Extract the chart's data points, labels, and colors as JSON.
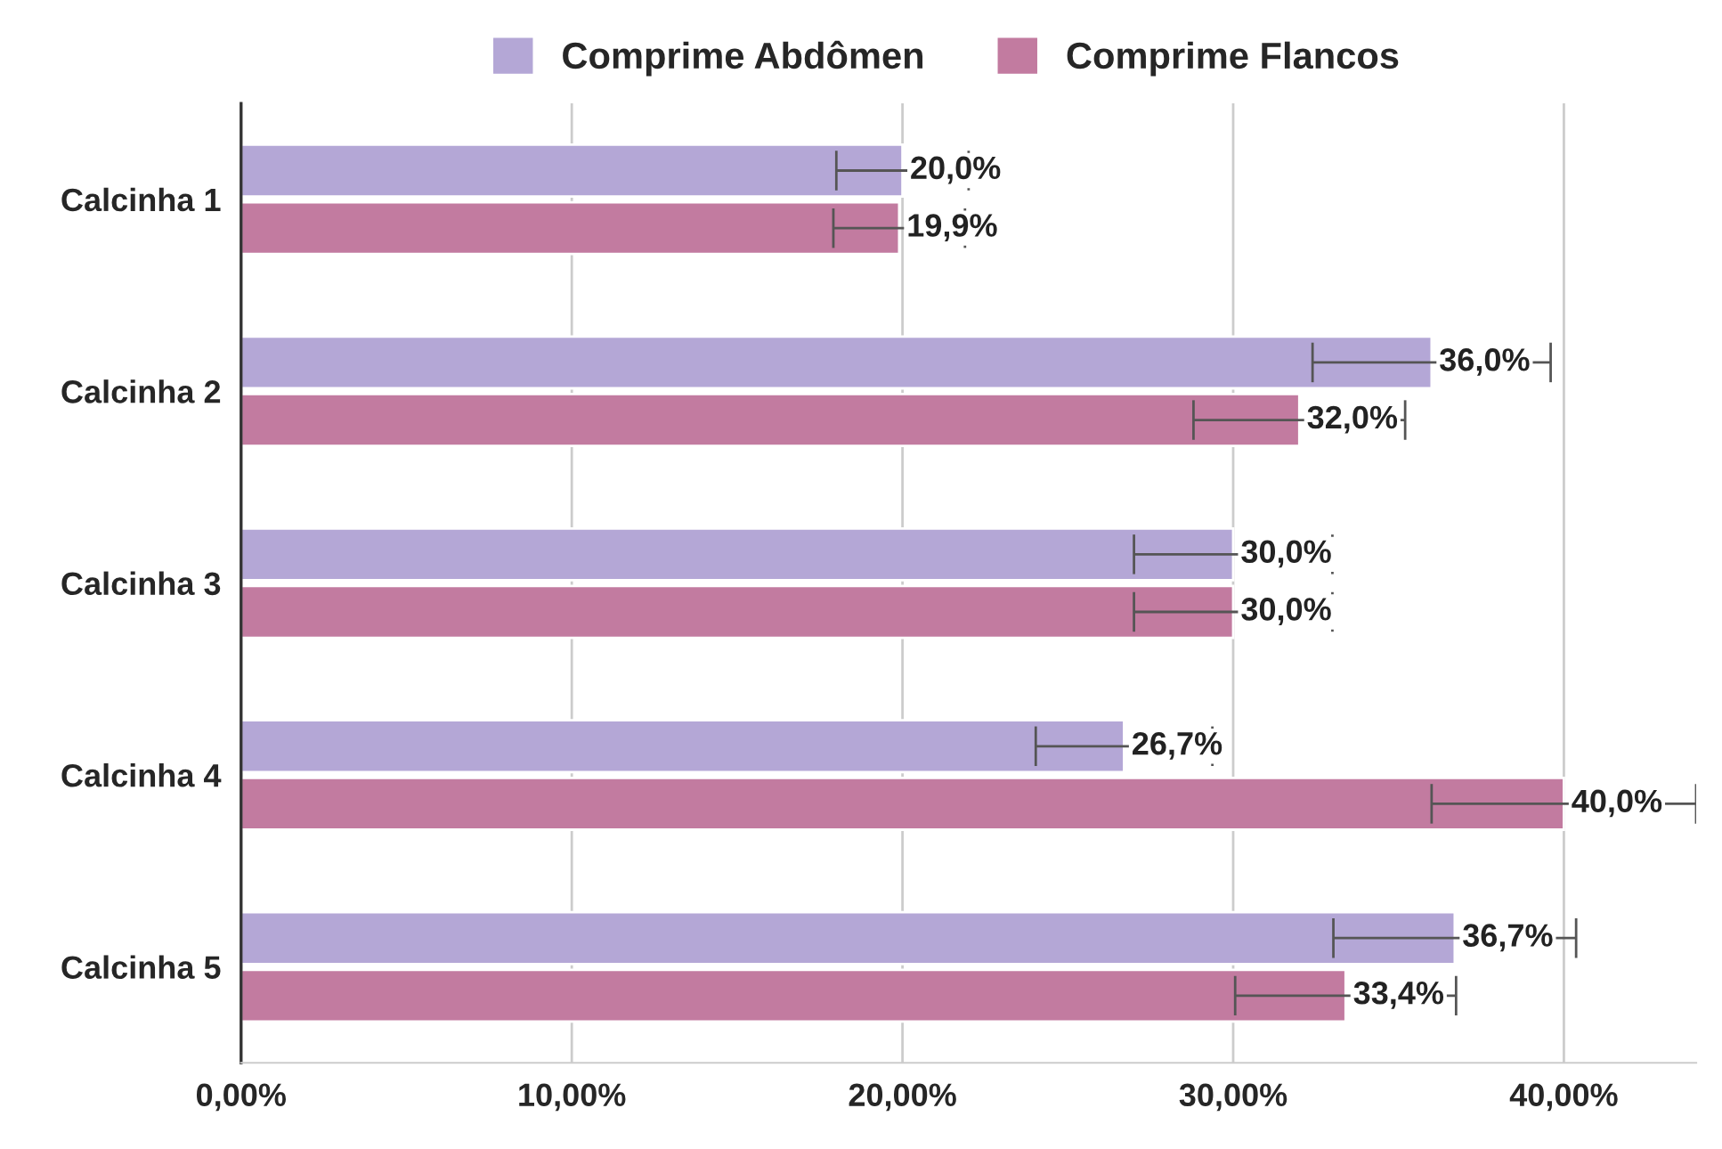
{
  "chart_data": {
    "type": "bar",
    "orientation": "horizontal",
    "categories": [
      "Calcinha 1",
      "Calcinha 2",
      "Calcinha 3",
      "Calcinha 4",
      "Calcinha 5"
    ],
    "series": [
      {
        "name": "Comprime Abdômen",
        "color": "#b4a7d6",
        "values": [
          20.0,
          36.0,
          30.0,
          26.7,
          36.7
        ],
        "errors": [
          2.0,
          3.6,
          3.0,
          2.67,
          3.67
        ],
        "value_labels": [
          "20,0%",
          "36,0%",
          "30,0%",
          "26,7%",
          "36,7%"
        ]
      },
      {
        "name": "Comprime Flancos",
        "color": "#c27ba0",
        "values": [
          19.9,
          32.0,
          30.0,
          40.0,
          33.4
        ],
        "errors": [
          1.99,
          3.2,
          3.0,
          4.0,
          3.34
        ],
        "value_labels": [
          "19,9%",
          "32,0%",
          "30,0%",
          "40,0%",
          "33,4%"
        ]
      }
    ],
    "xlim": [
      0,
      44
    ],
    "xticks": [
      {
        "value": 0,
        "label": "0,00%"
      },
      {
        "value": 10,
        "label": "10,00%"
      },
      {
        "value": 20,
        "label": "20,00%"
      },
      {
        "value": 30,
        "label": "30,00%"
      },
      {
        "value": 40,
        "label": "40,00%"
      }
    ],
    "grid": "x",
    "legend": "top"
  }
}
